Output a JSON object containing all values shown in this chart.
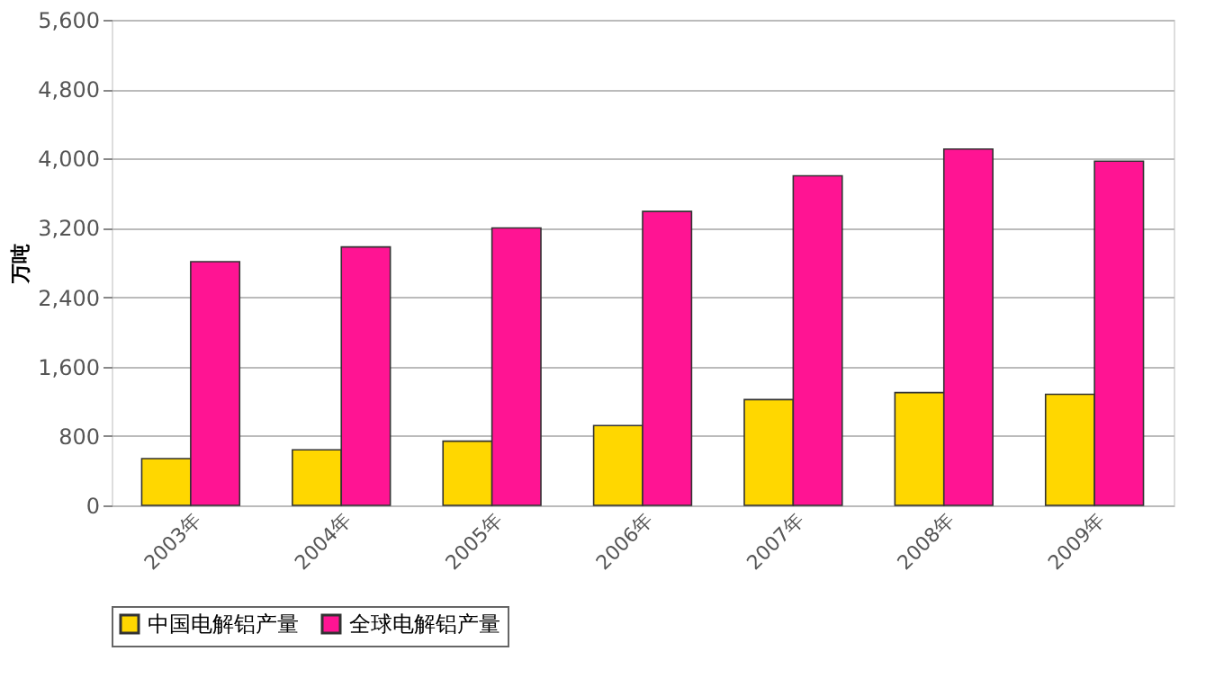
{
  "chart_data": {
    "type": "bar",
    "ylabel": "万吨",
    "categories": [
      "2003年",
      "2004年",
      "2005年",
      "2006年",
      "2007年",
      "2008年",
      "2009年"
    ],
    "series": [
      {
        "name": "中国电解铝产量",
        "color": "#ffd700",
        "values": [
          540,
          640,
          740,
          920,
          1220,
          1300,
          1280
        ]
      },
      {
        "name": "全球电解铝产量",
        "color": "#ff1493",
        "values": [
          2810,
          2980,
          3200,
          3390,
          3800,
          4110,
          3970
        ]
      }
    ],
    "ylim": [
      0,
      5600
    ],
    "yticks": [
      {
        "value": 0,
        "label": "0"
      },
      {
        "value": 800,
        "label": "800"
      },
      {
        "value": 1600,
        "label": "1,600"
      },
      {
        "value": 2400,
        "label": "2,400"
      },
      {
        "value": 3200,
        "label": "3,200"
      },
      {
        "value": 4000,
        "label": "4,000"
      },
      {
        "value": 4800,
        "label": "4,800"
      },
      {
        "value": 5600,
        "label": "5,600"
      }
    ],
    "grid": "y",
    "legend": "bottom"
  }
}
